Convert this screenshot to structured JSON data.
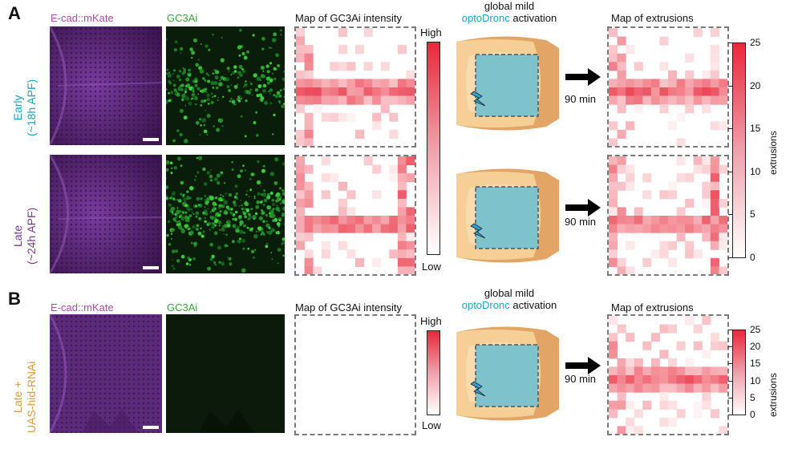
{
  "panels": {
    "a_letter": "A",
    "b_letter": "B"
  },
  "headers": {
    "ecad": "E-cad::mKate",
    "gc3ai": "GC3Ai",
    "map_intensity": "Map of GC3Ai intensity",
    "global_mild": "global mild",
    "optodronc": "optoDronc",
    "activation": "activation",
    "map_extrusions": "Map of extrusions"
  },
  "rows": {
    "early_line1": "Early",
    "early_line2": "(~18h APF)",
    "late_line1": "Late",
    "late_line2": "(~24h APF)",
    "lateb_line1": "Late +",
    "lateb_line2": "UAS-hid-RNAi"
  },
  "intensity_colorbar": {
    "high": "High",
    "low": "Low"
  },
  "arrows": {
    "time": "90 min"
  },
  "extrusion_colorbar": {
    "label": "extrusions",
    "ticks": [
      "25",
      "20",
      "15",
      "10",
      "5",
      "0"
    ],
    "max": 25
  },
  "colors": {
    "magenta_text": "#b04aa8",
    "green_text": "#3aa33a",
    "cyan_text": "#19a3c4",
    "orange_text": "#e09a3a",
    "heat_red": "#e8283a",
    "wing_outer": "#e3a566",
    "wing_inner": "#f6cf97",
    "wing_center": "#f8dcb0",
    "activation_square": "#7ec3cc",
    "lightning": "#2aa3dc"
  }
}
